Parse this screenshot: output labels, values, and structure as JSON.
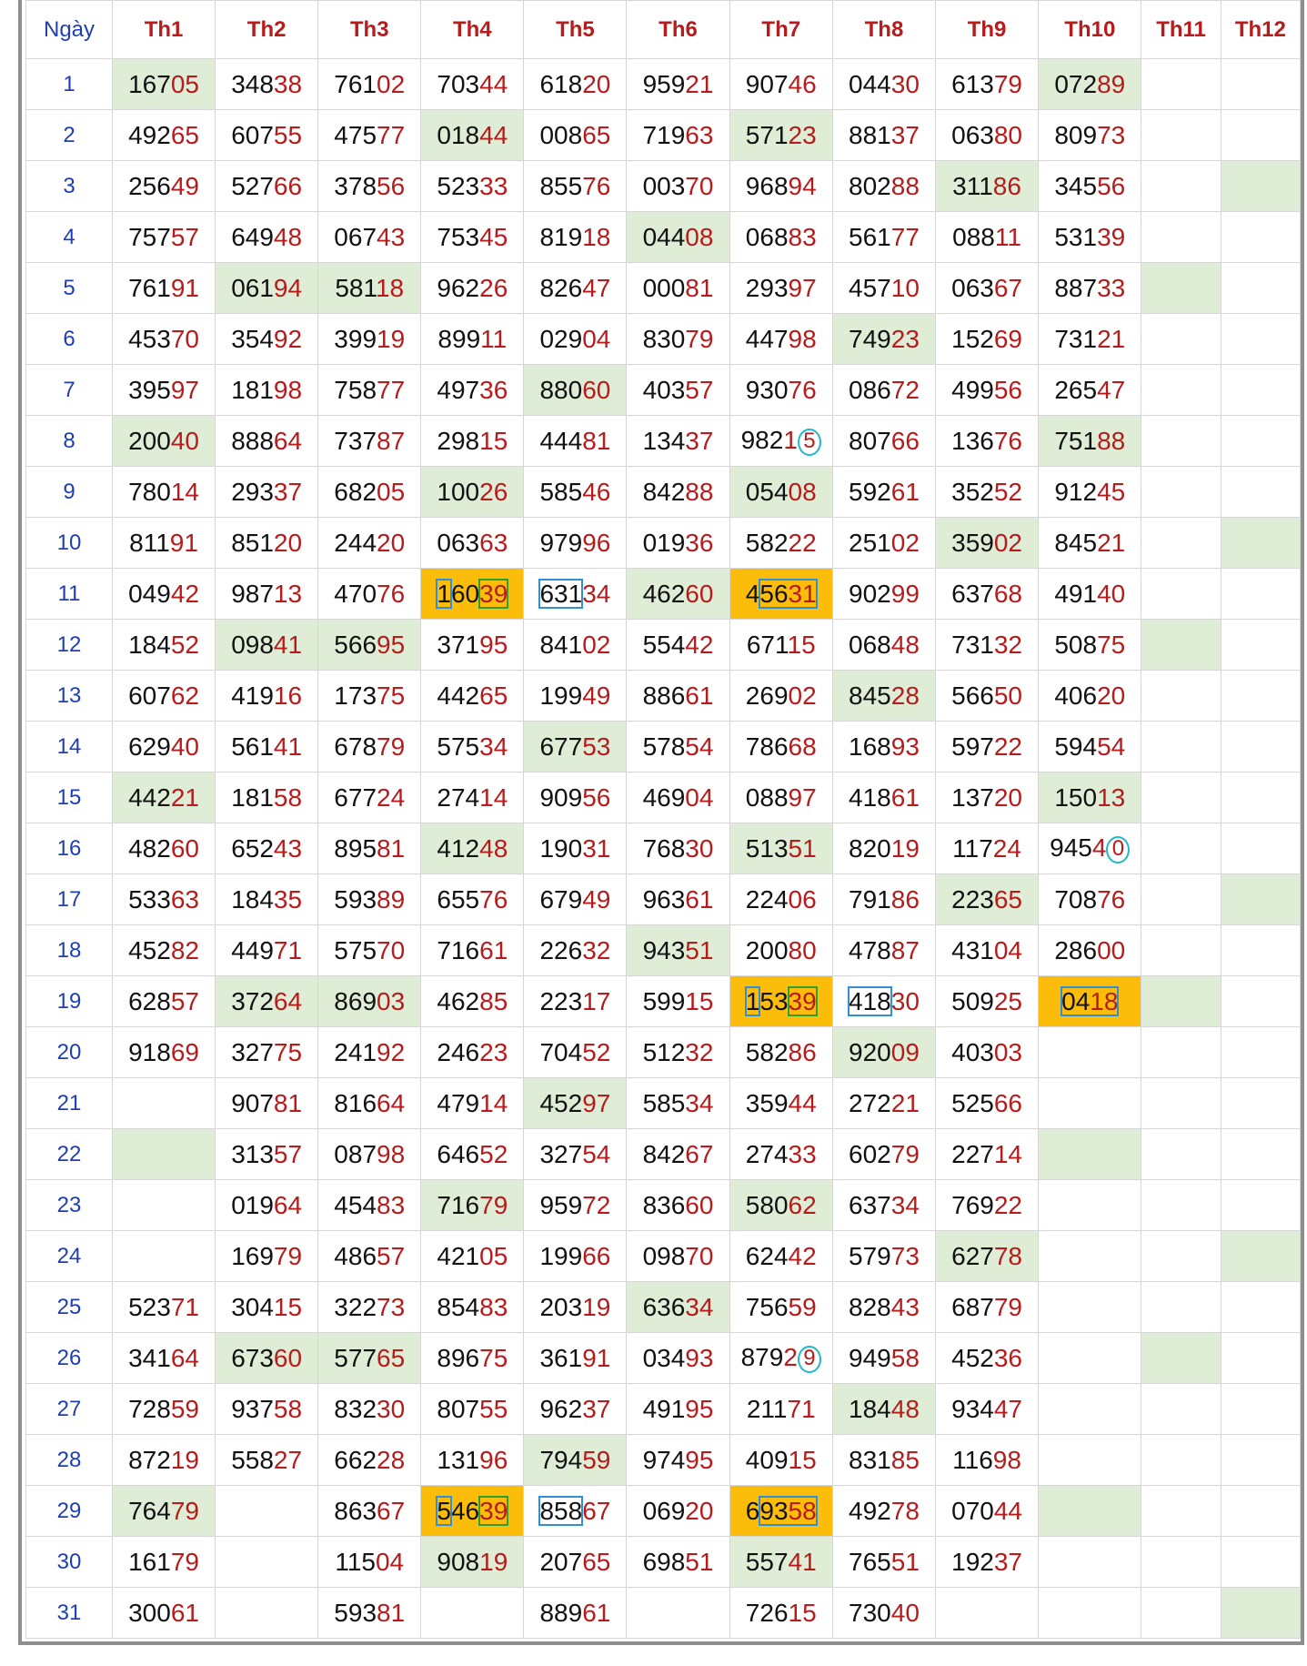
{
  "header": {
    "day_label": "Ngày",
    "months": [
      "Th1",
      "Th2",
      "Th3",
      "Th4",
      "Th5",
      "Th6",
      "Th7",
      "Th8",
      "Th9",
      "Th10",
      "Th11",
      "Th12"
    ]
  },
  "colors": {
    "header_month": "#b71c1c",
    "day_number": "#1f3fb0",
    "tail_digits": "#b71c1c",
    "green_cell": "#dfedd6",
    "orange_cell": "#fbbd0a",
    "blue_box": "#2f8fd8",
    "green_box": "#2e9e2e",
    "circle": "#22b8c8"
  },
  "rows": [
    {
      "day": "1",
      "cells": [
        "16705",
        "34838",
        "76102",
        "70344",
        "61820",
        "95921",
        "90746",
        "04430",
        "61379",
        "07289",
        "",
        ""
      ],
      "green": [
        0,
        9
      ]
    },
    {
      "day": "2",
      "cells": [
        "49265",
        "60755",
        "47577",
        "01844",
        "00865",
        "71963",
        "57123",
        "88137",
        "06380",
        "80973",
        "",
        ""
      ],
      "green": [
        3,
        6
      ]
    },
    {
      "day": "3",
      "cells": [
        "25649",
        "52766",
        "37856",
        "52333",
        "85576",
        "00370",
        "96894",
        "80288",
        "31186",
        "34556",
        "",
        ""
      ],
      "green": [
        8,
        11
      ]
    },
    {
      "day": "4",
      "cells": [
        "75757",
        "64948",
        "06743",
        "75345",
        "81918",
        "04408",
        "06883",
        "56177",
        "08811",
        "53139",
        "",
        ""
      ],
      "green": [
        5
      ]
    },
    {
      "day": "5",
      "cells": [
        "76191",
        "06194",
        "58118",
        "96226",
        "82647",
        "00081",
        "29397",
        "45710",
        "06367",
        "88733",
        "",
        ""
      ],
      "green": [
        1,
        2,
        10
      ]
    },
    {
      "day": "6",
      "cells": [
        "45370",
        "35492",
        "39919",
        "89911",
        "02904",
        "83079",
        "44798",
        "74923",
        "15269",
        "73121",
        "",
        ""
      ],
      "green": [
        7
      ]
    },
    {
      "day": "7",
      "cells": [
        "39597",
        "18198",
        "75877",
        "49736",
        "88060",
        "40357",
        "93076",
        "08672",
        "49956",
        "26547",
        "",
        ""
      ],
      "green": [
        4
      ]
    },
    {
      "day": "8",
      "cells": [
        "20040",
        "88864",
        "73787",
        "29815",
        "44481",
        "13437",
        "98215",
        "80766",
        "13676",
        "75188",
        "",
        ""
      ],
      "green": [
        0,
        9
      ]
    },
    {
      "day": "9",
      "cells": [
        "78014",
        "29337",
        "68205",
        "10026",
        "58546",
        "84288",
        "05408",
        "59261",
        "35252",
        "91245",
        "",
        ""
      ],
      "green": [
        3,
        6
      ]
    },
    {
      "day": "10",
      "cells": [
        "81191",
        "85120",
        "24420",
        "06363",
        "97996",
        "01936",
        "58222",
        "25102",
        "35902",
        "84521",
        "",
        ""
      ],
      "green": [
        8,
        11
      ]
    },
    {
      "day": "11",
      "cells": [
        "04942",
        "98713",
        "47076",
        "16039",
        "63134",
        "46260",
        "45631",
        "90299",
        "63768",
        "49140",
        "",
        ""
      ],
      "green": [
        5
      ],
      "orange": [
        3,
        6
      ]
    },
    {
      "day": "12",
      "cells": [
        "18452",
        "09841",
        "56695",
        "37195",
        "84102",
        "55442",
        "67115",
        "06848",
        "73132",
        "50875",
        "",
        ""
      ],
      "green": [
        1,
        2,
        10
      ]
    },
    {
      "day": "13",
      "cells": [
        "60762",
        "41916",
        "17375",
        "44265",
        "19949",
        "88661",
        "26902",
        "84528",
        "56650",
        "40620",
        "",
        ""
      ],
      "green": [
        7
      ]
    },
    {
      "day": "14",
      "cells": [
        "62940",
        "56141",
        "67879",
        "57534",
        "67753",
        "57854",
        "78668",
        "16893",
        "59722",
        "59454",
        "",
        ""
      ],
      "green": [
        4
      ]
    },
    {
      "day": "15",
      "cells": [
        "44221",
        "18158",
        "67724",
        "27414",
        "90956",
        "46904",
        "08897",
        "41861",
        "13720",
        "15013",
        "",
        ""
      ],
      "green": [
        0,
        9
      ]
    },
    {
      "day": "16",
      "cells": [
        "48260",
        "65243",
        "89581",
        "41248",
        "19031",
        "76830",
        "51351",
        "82019",
        "11724",
        "94540",
        "",
        ""
      ],
      "green": [
        3,
        6
      ]
    },
    {
      "day": "17",
      "cells": [
        "53363",
        "18435",
        "59389",
        "65576",
        "67949",
        "96361",
        "22406",
        "79186",
        "22365",
        "70876",
        "",
        ""
      ],
      "green": [
        8,
        11
      ]
    },
    {
      "day": "18",
      "cells": [
        "45282",
        "44971",
        "57570",
        "71661",
        "22632",
        "94351",
        "20080",
        "47887",
        "43104",
        "28600",
        "",
        ""
      ],
      "green": [
        5
      ]
    },
    {
      "day": "19",
      "cells": [
        "62857",
        "37264",
        "86903",
        "46285",
        "22317",
        "59915",
        "15339",
        "41830",
        "50925",
        "0418",
        "",
        ""
      ],
      "green": [
        1,
        2,
        10
      ],
      "orange": [
        6,
        9
      ]
    },
    {
      "day": "20",
      "cells": [
        "91869",
        "32775",
        "24192",
        "24623",
        "70452",
        "51232",
        "58286",
        "92009",
        "40303",
        "",
        "",
        ""
      ],
      "green": [
        7
      ]
    },
    {
      "day": "21",
      "cells": [
        "",
        "90781",
        "81664",
        "47914",
        "45297",
        "58534",
        "35944",
        "27221",
        "52566",
        "",
        "",
        ""
      ],
      "green": [
        4
      ]
    },
    {
      "day": "22",
      "cells": [
        "",
        "31357",
        "08798",
        "64652",
        "32754",
        "84267",
        "27433",
        "60279",
        "22714",
        "",
        "",
        ""
      ],
      "green": [
        0,
        9
      ]
    },
    {
      "day": "23",
      "cells": [
        "",
        "01964",
        "45483",
        "71679",
        "95972",
        "83660",
        "58062",
        "63734",
        "76922",
        "",
        "",
        ""
      ],
      "green": [
        3,
        6
      ]
    },
    {
      "day": "24",
      "cells": [
        "",
        "16979",
        "48657",
        "42105",
        "19966",
        "09870",
        "62442",
        "57973",
        "62778",
        "",
        "",
        ""
      ],
      "green": [
        8,
        11
      ]
    },
    {
      "day": "25",
      "cells": [
        "52371",
        "30415",
        "32273",
        "85483",
        "20319",
        "63634",
        "75659",
        "82843",
        "68779",
        "",
        "",
        ""
      ],
      "green": [
        5
      ]
    },
    {
      "day": "26",
      "cells": [
        "34164",
        "67360",
        "57765",
        "89675",
        "36191",
        "03493",
        "87929",
        "94958",
        "45236",
        "",
        "",
        ""
      ],
      "green": [
        1,
        2,
        10
      ]
    },
    {
      "day": "27",
      "cells": [
        "72859",
        "93758",
        "83230",
        "80755",
        "96237",
        "49195",
        "21171",
        "18448",
        "93447",
        "",
        "",
        ""
      ],
      "green": [
        7
      ]
    },
    {
      "day": "28",
      "cells": [
        "87219",
        "55827",
        "66228",
        "13196",
        "79459",
        "97495",
        "40915",
        "83185",
        "11698",
        "",
        "",
        ""
      ],
      "green": [
        4
      ]
    },
    {
      "day": "29",
      "cells": [
        "76479",
        "",
        "86367",
        "54639",
        "85867",
        "06920",
        "69358",
        "49278",
        "07044",
        "",
        "",
        ""
      ],
      "green": [
        0,
        9
      ],
      "orange": [
        3,
        6
      ]
    },
    {
      "day": "30",
      "cells": [
        "16179",
        "",
        "11504",
        "90819",
        "20765",
        "69851",
        "55741",
        "76551",
        "19237",
        "",
        "",
        ""
      ],
      "green": [
        3,
        6
      ]
    },
    {
      "day": "31",
      "cells": [
        "30061",
        "",
        "59381",
        "",
        "88961",
        "",
        "72615",
        "73040",
        "",
        "",
        "",
        ""
      ],
      "green": [
        11
      ]
    }
  ],
  "marks": [
    {
      "day": "8",
      "col": 6,
      "type": "circle",
      "start": 4,
      "len": 1
    },
    {
      "day": "11",
      "col": 3,
      "type": "blue",
      "start": 0,
      "len": 1
    },
    {
      "day": "11",
      "col": 3,
      "type": "green",
      "start": 3,
      "len": 2
    },
    {
      "day": "11",
      "col": 4,
      "type": "blue",
      "start": 0,
      "len": 3
    },
    {
      "day": "11",
      "col": 6,
      "type": "blue",
      "start": 1,
      "len": 4
    },
    {
      "day": "16",
      "col": 9,
      "type": "circle",
      "start": 4,
      "len": 1
    },
    {
      "day": "19",
      "col": 6,
      "type": "blue",
      "start": 0,
      "len": 1
    },
    {
      "day": "19",
      "col": 6,
      "type": "green",
      "start": 3,
      "len": 2
    },
    {
      "day": "19",
      "col": 7,
      "type": "blue",
      "start": 0,
      "len": 3
    },
    {
      "day": "19",
      "col": 9,
      "type": "blue",
      "start": 0,
      "len": 4
    },
    {
      "day": "26",
      "col": 6,
      "type": "circle",
      "start": 4,
      "len": 1
    },
    {
      "day": "29",
      "col": 3,
      "type": "blue",
      "start": 0,
      "len": 1
    },
    {
      "day": "29",
      "col": 3,
      "type": "green",
      "start": 3,
      "len": 2
    },
    {
      "day": "29",
      "col": 4,
      "type": "blue",
      "start": 0,
      "len": 3
    },
    {
      "day": "29",
      "col": 6,
      "type": "blue",
      "start": 1,
      "len": 4
    }
  ]
}
